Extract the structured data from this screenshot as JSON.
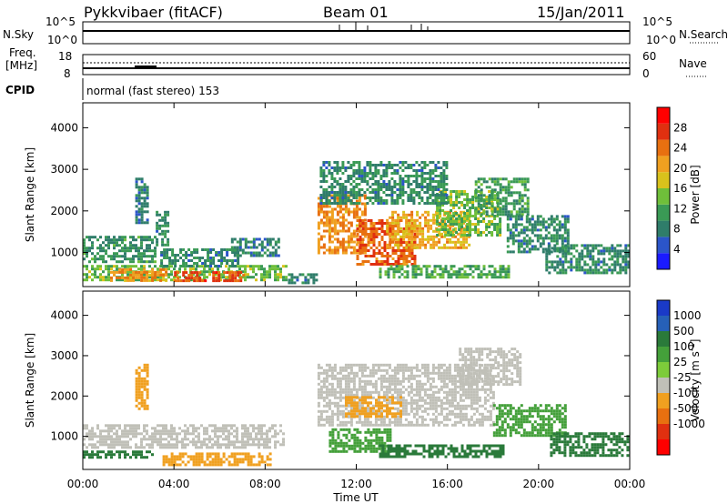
{
  "header": {
    "title": "Pykkvibaer (fitACF)",
    "beam": "Beam 01",
    "date": "15/Jan/2011"
  },
  "nsky_panel": {
    "left_label": "N.Sky",
    "left_ticks": [
      "10^5",
      "10^0"
    ],
    "right_ticks": [
      "10^5",
      "10^0"
    ],
    "right_label": "N.Search"
  },
  "freq_panel": {
    "left_label_line1": "Freq.",
    "left_label_line2": "[MHz]",
    "left_ticks": [
      "18",
      "8"
    ],
    "right_ticks": [
      "60",
      "0"
    ],
    "right_label": "Nave"
  },
  "cpid": {
    "label": "CPID",
    "value": "normal (fast stereo) 153"
  },
  "colors": {
    "power_scale": [
      "#1a1aff",
      "#2b55c9",
      "#2f7d6a",
      "#3a9a55",
      "#6fbf3a",
      "#d9c21c",
      "#f0a020",
      "#e87010",
      "#e03010",
      "#ff0000"
    ],
    "velocity_scale": [
      "#1a3ac8",
      "#2660b8",
      "#2a7a3a",
      "#44a03a",
      "#7dcc3a",
      "#c8c8c0",
      "#f0a020",
      "#e87010",
      "#e04010",
      "#ff0000"
    ],
    "ground_scatter": "#c0c0b8"
  },
  "chart_data": [
    {
      "type": "heatmap",
      "title": "",
      "xlabel": "",
      "ylabel": "Slant Range [km]",
      "xlim": [
        0,
        24
      ],
      "ylim": [
        180,
        4600
      ],
      "x_ticks": [
        "00:00",
        "04:00",
        "08:00",
        "12:00",
        "16:00",
        "20:00",
        "00:00"
      ],
      "y_ticks": [
        "1000",
        "2000",
        "3000",
        "4000"
      ],
      "colorbar": {
        "label": "Power [dB]",
        "range": [
          0,
          32
        ],
        "ticks": [
          "4",
          "8",
          "12",
          "16",
          "20",
          "24",
          "28"
        ]
      },
      "blobs": [
        {
          "t0": 0.0,
          "t1": 8.9,
          "r0": 350,
          "r1": 700,
          "value": 14
        },
        {
          "t0": 1.2,
          "t1": 3.6,
          "r0": 350,
          "r1": 620,
          "value": 22
        },
        {
          "t0": 4.0,
          "t1": 7.0,
          "r0": 300,
          "r1": 550,
          "value": 26
        },
        {
          "t0": 0.0,
          "t1": 3.2,
          "r0": 800,
          "r1": 1400,
          "value": 10
        },
        {
          "t0": 3.4,
          "t1": 6.8,
          "r0": 700,
          "r1": 1100,
          "value": 9
        },
        {
          "t0": 6.5,
          "t1": 8.6,
          "r0": 900,
          "r1": 1350,
          "value": 8
        },
        {
          "t0": 2.3,
          "t1": 2.8,
          "r0": 1700,
          "r1": 2800,
          "value": 8
        },
        {
          "t0": 3.2,
          "t1": 3.7,
          "r0": 1200,
          "r1": 2000,
          "value": 9
        },
        {
          "t0": 10.3,
          "t1": 12.4,
          "r0": 1000,
          "r1": 2400,
          "value": 22
        },
        {
          "t0": 12.0,
          "t1": 14.6,
          "r0": 700,
          "r1": 1800,
          "value": 25
        },
        {
          "t0": 13.3,
          "t1": 17.0,
          "r0": 1100,
          "r1": 2000,
          "value": 20
        },
        {
          "t0": 15.5,
          "t1": 18.3,
          "r0": 1400,
          "r1": 2500,
          "value": 14
        },
        {
          "t0": 17.2,
          "t1": 19.5,
          "r0": 1900,
          "r1": 2800,
          "value": 11
        },
        {
          "t0": 10.4,
          "t1": 16.0,
          "r0": 2200,
          "r1": 3200,
          "value": 9
        },
        {
          "t0": 13.0,
          "t1": 18.7,
          "r0": 400,
          "r1": 700,
          "value": 12
        },
        {
          "t0": 18.6,
          "t1": 21.3,
          "r0": 1000,
          "r1": 1900,
          "value": 9
        },
        {
          "t0": 20.3,
          "t1": 24.0,
          "r0": 500,
          "r1": 1200,
          "value": 9
        },
        {
          "t0": 9.0,
          "t1": 10.3,
          "r0": 300,
          "r1": 500,
          "value": 8
        }
      ]
    },
    {
      "type": "heatmap",
      "title": "",
      "xlabel": "Time UT",
      "ylabel": "Slant Range [km]",
      "xlim": [
        0,
        24
      ],
      "ylim": [
        180,
        4600
      ],
      "x_ticks": [
        "00:00",
        "04:00",
        "08:00",
        "12:00",
        "16:00",
        "20:00",
        "00:00"
      ],
      "y_ticks": [
        "1000",
        "2000",
        "3000",
        "4000"
      ],
      "colorbar": {
        "label": "Velocity [m s^-1]",
        "ticks": [
          "1000",
          "500",
          "100",
          "25",
          "-25",
          "-100",
          "-500",
          "-1000"
        ]
      },
      "blobs": [
        {
          "t0": 0.0,
          "t1": 3.0,
          "r0": 450,
          "r1": 650,
          "value": 150
        },
        {
          "t0": 3.5,
          "t1": 8.2,
          "r0": 300,
          "r1": 600,
          "value": -120
        },
        {
          "t0": 0.0,
          "t1": 8.8,
          "r0": 700,
          "r1": 1300,
          "value": 0
        },
        {
          "t0": 2.3,
          "t1": 2.8,
          "r0": 1700,
          "r1": 2800,
          "value": -150
        },
        {
          "t0": 10.3,
          "t1": 18.0,
          "r0": 1300,
          "r1": 2800,
          "value": 0
        },
        {
          "t0": 11.5,
          "t1": 14.0,
          "r0": 1500,
          "r1": 2000,
          "value": -150
        },
        {
          "t0": 10.8,
          "t1": 13.5,
          "r0": 600,
          "r1": 1200,
          "value": 60
        },
        {
          "t0": 13.0,
          "t1": 18.5,
          "r0": 500,
          "r1": 800,
          "value": 150
        },
        {
          "t0": 18.0,
          "t1": 21.2,
          "r0": 1000,
          "r1": 1800,
          "value": 60
        },
        {
          "t0": 20.5,
          "t1": 24.0,
          "r0": 500,
          "r1": 1100,
          "value": 150
        },
        {
          "t0": 16.5,
          "t1": 19.2,
          "r0": 2300,
          "r1": 3200,
          "value": 0
        }
      ]
    }
  ]
}
